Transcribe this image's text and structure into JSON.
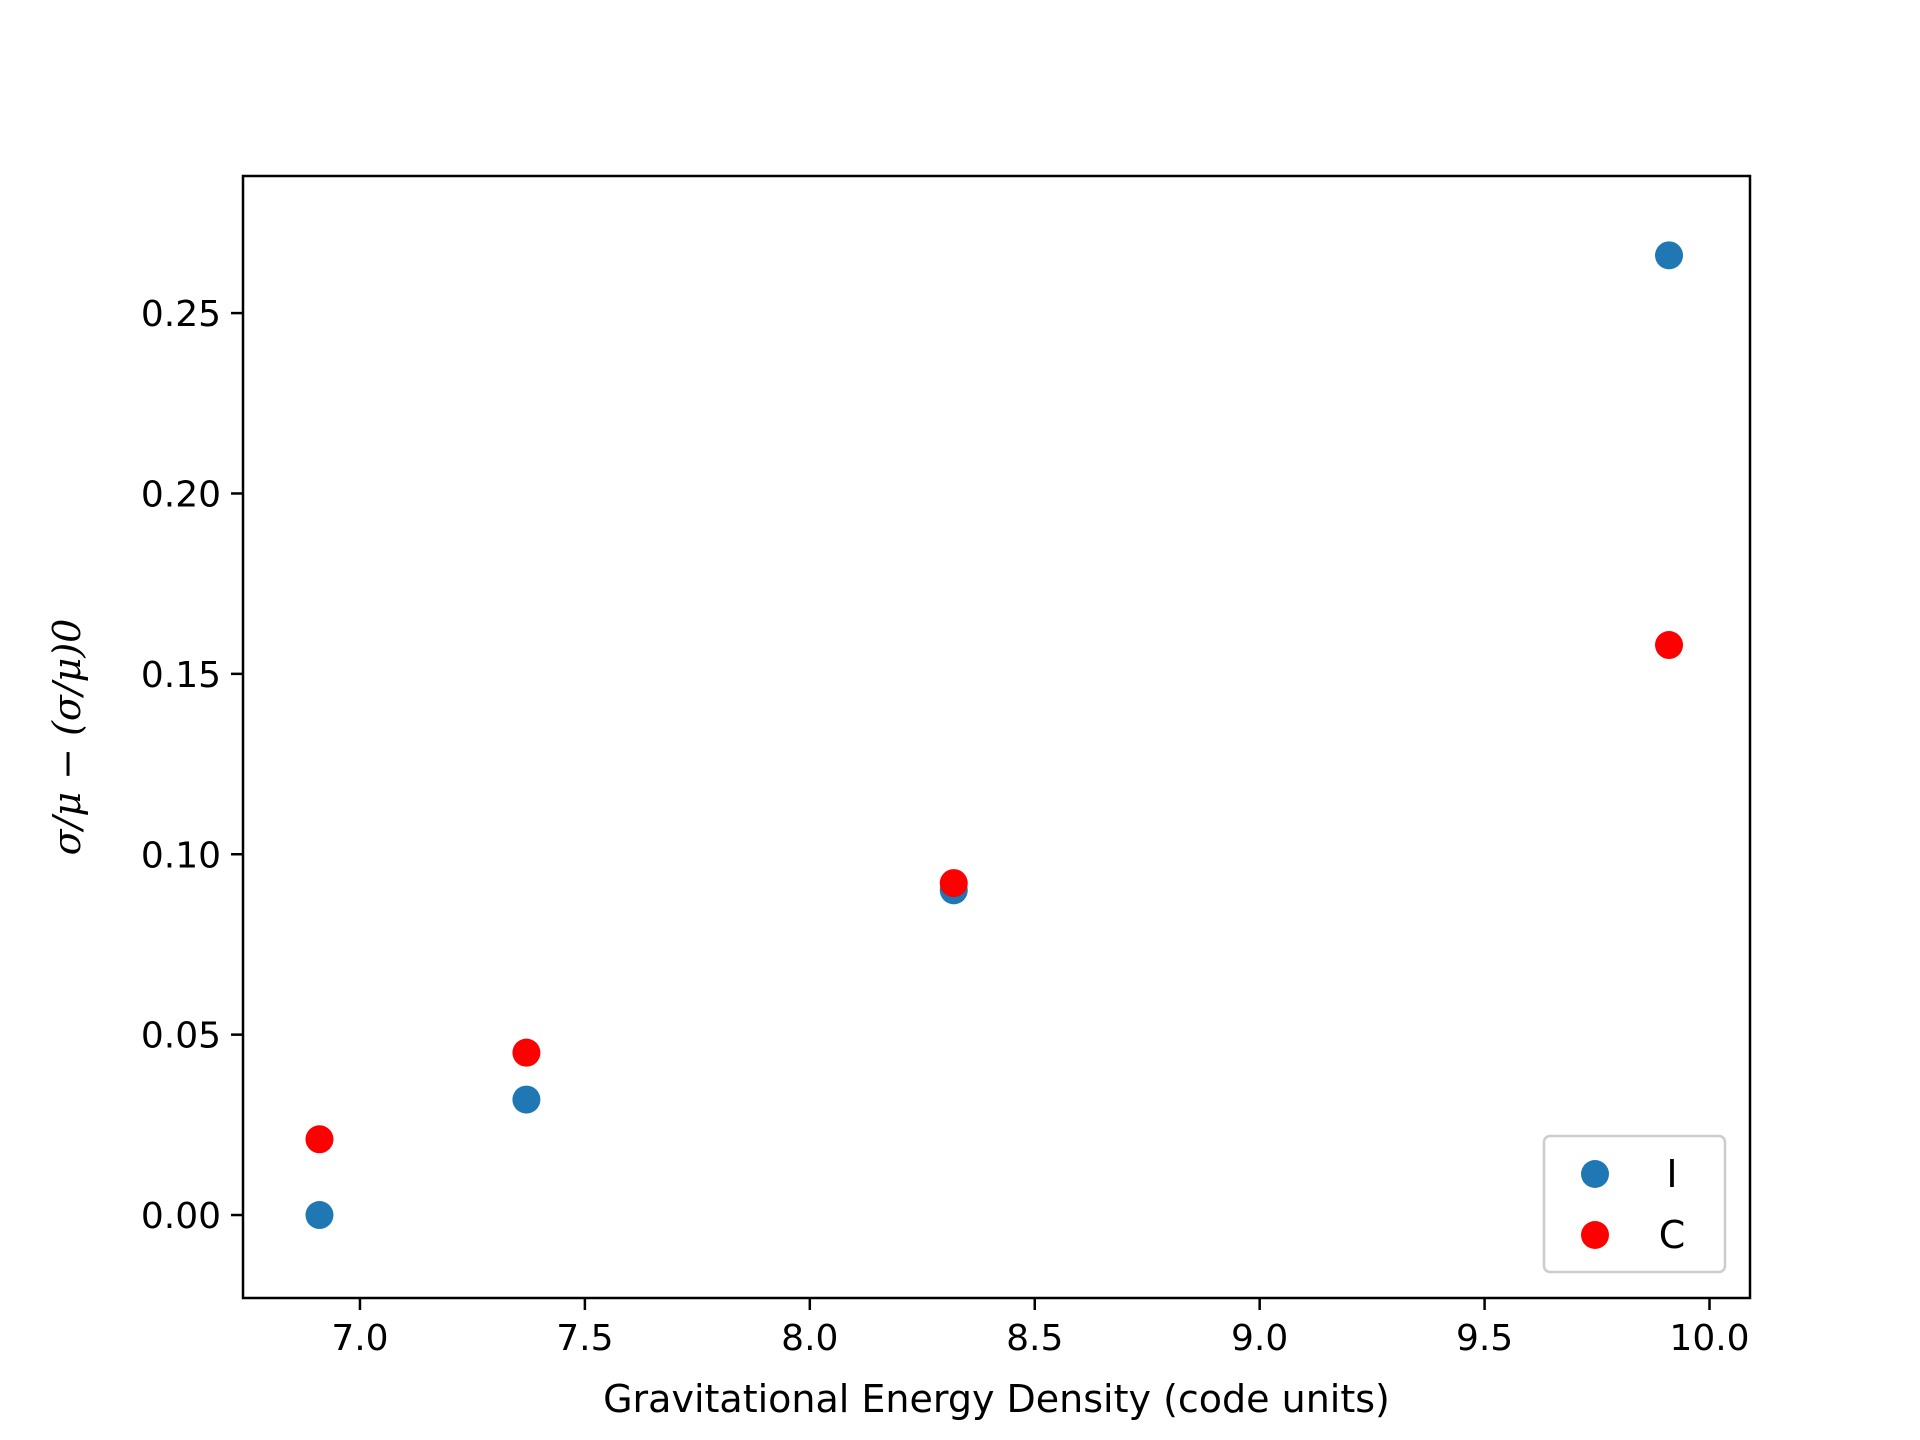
{
  "chart_data": {
    "type": "scatter",
    "title": "",
    "xlabel": "Gravitational Energy Density (code units)",
    "ylabel": "σ/μ − (σ/μ)0",
    "xlim": [
      6.74,
      10.09
    ],
    "ylim": [
      -0.023,
      0.288
    ],
    "xticks": [
      7.0,
      7.5,
      8.0,
      8.5,
      9.0,
      9.5,
      10.0
    ],
    "xtick_labels": [
      "7.0",
      "7.5",
      "8.0",
      "8.5",
      "9.0",
      "9.5",
      "10.0"
    ],
    "yticks": [
      0.0,
      0.05,
      0.1,
      0.15,
      0.2,
      0.25
    ],
    "ytick_labels": [
      "0.00",
      "0.05",
      "0.10",
      "0.15",
      "0.20",
      "0.25"
    ],
    "grid": false,
    "legend_position": "lower-right",
    "series": [
      {
        "name": "I",
        "color": "#1f77b4",
        "x": [
          6.91,
          7.37,
          8.32,
          9.91
        ],
        "y": [
          0.0,
          0.032,
          0.09,
          0.266
        ]
      },
      {
        "name": "C",
        "color": "#ff0000",
        "x": [
          6.91,
          7.37,
          8.32,
          9.91
        ],
        "y": [
          0.021,
          0.045,
          0.092,
          0.158
        ]
      }
    ]
  }
}
